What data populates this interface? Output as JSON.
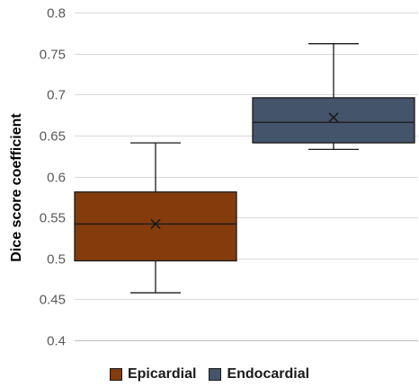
{
  "chart_data": {
    "type": "box",
    "ylabel": "Dice score coefficient",
    "xlabel": "",
    "ylim": [
      0.4,
      0.8
    ],
    "yticks": [
      "0.4",
      "0.45",
      "0.5",
      "0.55",
      "0.6",
      "0.65",
      "0.7",
      "0.75",
      "0.8"
    ],
    "grid": true,
    "legend_position": "bottom",
    "series": [
      {
        "name": "Epicardial",
        "color": "#843c0c",
        "min": 0.458,
        "q1": 0.497,
        "median": 0.542,
        "q3": 0.581,
        "max": 0.641,
        "mean": 0.542
      },
      {
        "name": "Endocardial",
        "color": "#44546a",
        "min": 0.633,
        "q1": 0.641,
        "median": 0.666,
        "q3": 0.696,
        "max": 0.762,
        "mean": 0.672
      }
    ]
  }
}
